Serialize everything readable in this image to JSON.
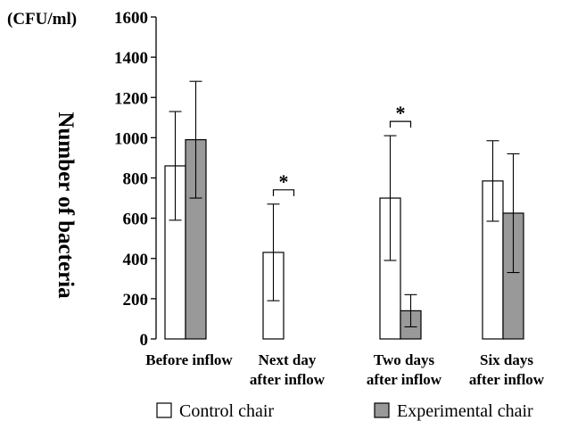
{
  "chart_data": {
    "type": "bar",
    "unit_label": "(CFU/ml)",
    "ylabel": "Number of bacteria",
    "ylim": [
      0,
      1600
    ],
    "yticks": [
      0,
      200,
      400,
      600,
      800,
      1000,
      1200,
      1400,
      1600
    ],
    "categories": [
      [
        "Before inflow"
      ],
      [
        "Next day",
        "after inflow"
      ],
      [
        "Two days",
        "after inflow"
      ],
      [
        "Six days",
        "after inflow"
      ]
    ],
    "series": [
      {
        "name": "Control chair",
        "color": "#ffffff",
        "values": [
          860,
          430,
          700,
          785
        ],
        "errors": [
          270,
          240,
          310,
          200
        ]
      },
      {
        "name": "Experimental chair",
        "color": "#999999",
        "values": [
          990,
          0,
          140,
          625
        ],
        "errors": [
          290,
          0,
          80,
          295
        ]
      }
    ],
    "significance": [
      {
        "category_index": 1,
        "label": "*"
      },
      {
        "category_index": 2,
        "label": "*"
      }
    ],
    "legend_position": "bottom",
    "grid": false
  }
}
